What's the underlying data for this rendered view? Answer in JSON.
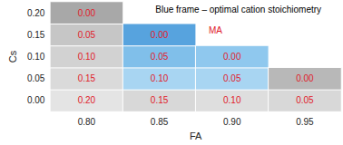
{
  "chart_data": {
    "type": "heatmap",
    "x_label": "FA",
    "y_label": "Cs",
    "x_categories": [
      "0.80",
      "0.85",
      "0.90",
      "0.95"
    ],
    "y_categories": [
      "0.00",
      "0.05",
      "0.10",
      "0.15",
      "0.20"
    ],
    "value_name": "MA",
    "annotation": "Blue frame – optimal cation stoichiometry",
    "data_labels": true,
    "cells": [
      {
        "x": "0.80",
        "y": "0.00",
        "value": 0.2,
        "label": "0.20",
        "color": "#e4e4e4"
      },
      {
        "x": "0.80",
        "y": "0.05",
        "value": 0.15,
        "label": "0.15",
        "color": "#dadada"
      },
      {
        "x": "0.80",
        "y": "0.10",
        "value": 0.1,
        "label": "0.10",
        "color": "#d2d2d2"
      },
      {
        "x": "0.80",
        "y": "0.15",
        "value": 0.05,
        "label": "0.05",
        "color": "#c6c6c6"
      },
      {
        "x": "0.80",
        "y": "0.20",
        "value": 0.0,
        "label": "0.00",
        "color": "#a8a8a8"
      },
      {
        "x": "0.85",
        "y": "0.00",
        "value": 0.15,
        "label": "0.15",
        "color": "#d8d8d8"
      },
      {
        "x": "0.85",
        "y": "0.05",
        "value": 0.1,
        "label": "0.10",
        "color": "#a8d5f2"
      },
      {
        "x": "0.85",
        "y": "0.10",
        "value": 0.05,
        "label": "0.05",
        "color": "#80bfea"
      },
      {
        "x": "0.85",
        "y": "0.15",
        "value": 0.0,
        "label": "0.00",
        "color": "#57a3de"
      },
      {
        "x": "0.90",
        "y": "0.00",
        "value": 0.1,
        "label": "0.10",
        "color": "#dedede"
      },
      {
        "x": "0.90",
        "y": "0.05",
        "value": 0.05,
        "label": "0.05",
        "color": "#a8d5f2"
      },
      {
        "x": "0.90",
        "y": "0.10",
        "value": 0.0,
        "label": "0.00",
        "color": "#8fc8ee"
      },
      {
        "x": "0.95",
        "y": "0.00",
        "value": 0.05,
        "label": "0.05",
        "color": "#d8d8d8"
      },
      {
        "x": "0.95",
        "y": "0.05",
        "value": 0.0,
        "label": "0.00",
        "color": "#b8b8b8"
      }
    ]
  }
}
